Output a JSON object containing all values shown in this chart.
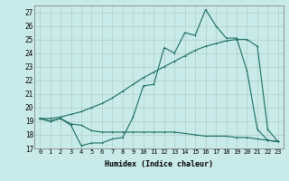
{
  "xlabel": "Humidex (Indice chaleur)",
  "bg_color": "#c8eae8",
  "line_color": "#1a6b60",
  "grid_color": "#b0cec8",
  "xlim": [
    -0.5,
    23.5
  ],
  "ylim": [
    17,
    27.5
  ],
  "yticks": [
    17,
    18,
    19,
    20,
    21,
    22,
    23,
    24,
    25,
    26,
    27
  ],
  "xticks": [
    0,
    1,
    2,
    3,
    4,
    5,
    6,
    7,
    8,
    9,
    10,
    11,
    12,
    13,
    14,
    15,
    16,
    17,
    18,
    19,
    20,
    21,
    22,
    23
  ],
  "series1_jagged": {
    "x": [
      0,
      1,
      2,
      3,
      4,
      5,
      6,
      7,
      8,
      9,
      10,
      11,
      12,
      13,
      14,
      15,
      16,
      17,
      18,
      19,
      20,
      21,
      22,
      23
    ],
    "y": [
      19.2,
      19.0,
      19.2,
      18.7,
      17.2,
      17.4,
      17.4,
      17.7,
      17.8,
      19.3,
      21.6,
      21.7,
      24.4,
      24.0,
      25.5,
      25.3,
      27.2,
      26.0,
      25.1,
      25.1,
      22.7,
      18.4,
      17.6,
      17.5
    ]
  },
  "series2_smooth": {
    "x": [
      0,
      1,
      2,
      3,
      4,
      5,
      6,
      7,
      8,
      9,
      10,
      11,
      12,
      13,
      14,
      15,
      16,
      17,
      18,
      19,
      20,
      21,
      22,
      23
    ],
    "y": [
      19.2,
      19.2,
      19.3,
      19.5,
      19.7,
      20.0,
      20.3,
      20.7,
      21.2,
      21.7,
      22.2,
      22.6,
      23.0,
      23.4,
      23.8,
      24.2,
      24.5,
      24.7,
      24.9,
      25.0,
      25.0,
      24.5,
      18.4,
      17.5
    ]
  },
  "series3_low": {
    "x": [
      0,
      1,
      2,
      3,
      4,
      5,
      6,
      7,
      8,
      9,
      10,
      11,
      12,
      13,
      14,
      15,
      16,
      17,
      18,
      19,
      20,
      21,
      22,
      23
    ],
    "y": [
      19.2,
      19.0,
      19.2,
      18.8,
      18.7,
      18.3,
      18.2,
      18.2,
      18.2,
      18.2,
      18.2,
      18.2,
      18.2,
      18.2,
      18.1,
      18.0,
      17.9,
      17.9,
      17.9,
      17.8,
      17.8,
      17.7,
      17.6,
      17.5
    ]
  }
}
